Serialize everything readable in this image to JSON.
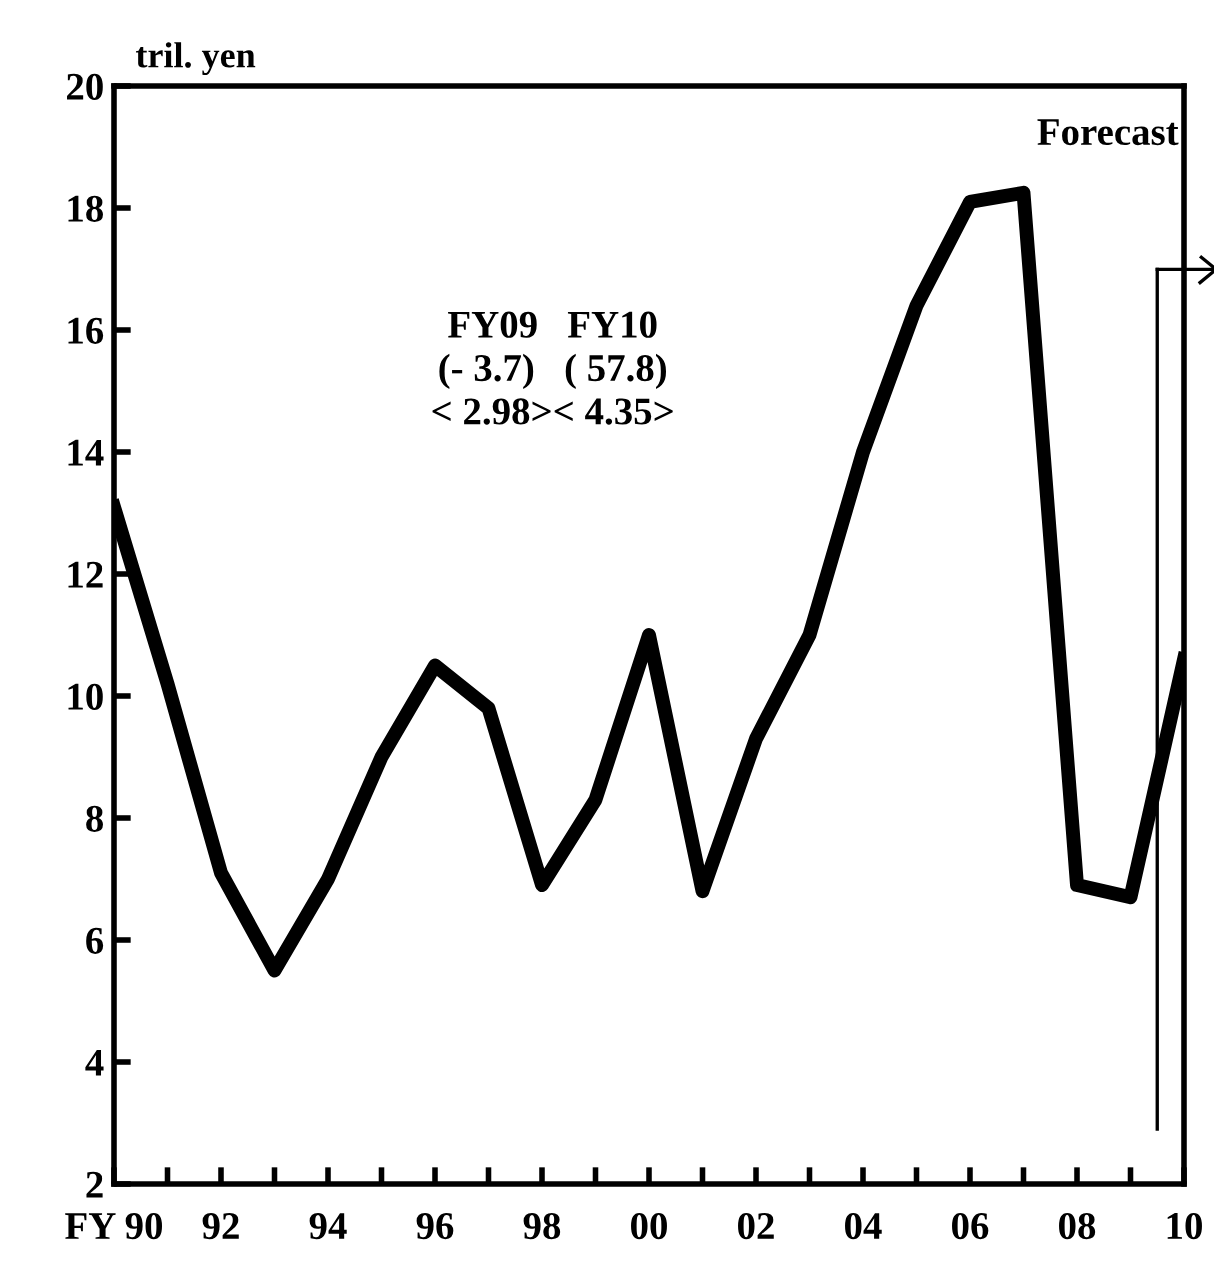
{
  "chart_data": {
    "type": "line",
    "ylabel": "tril. yen",
    "x": [
      1990,
      1991,
      1992,
      1993,
      1994,
      1995,
      1996,
      1997,
      1998,
      1999,
      2000,
      2001,
      2002,
      2003,
      2004,
      2005,
      2006,
      2007,
      2008,
      2009,
      2010
    ],
    "series": [
      {
        "color": "#000000",
        "values": [
          13.1,
          10.2,
          7.1,
          5.5,
          7.0,
          9.0,
          10.5,
          9.8,
          6.9,
          8.3,
          11.0,
          6.8,
          9.3,
          11.0,
          14.0,
          16.4,
          18.1,
          18.25,
          6.9,
          6.7,
          10.6
        ]
      }
    ],
    "xlim": [
      1990,
      2010
    ],
    "ylim": [
      2,
      20
    ],
    "xticks": [
      {
        "value": 1990,
        "label": "FY 90"
      },
      {
        "value": 1991,
        "label": null
      },
      {
        "value": 1992,
        "label": "92"
      },
      {
        "value": 1993,
        "label": null
      },
      {
        "value": 1994,
        "label": "94"
      },
      {
        "value": 1995,
        "label": null
      },
      {
        "value": 1996,
        "label": "96"
      },
      {
        "value": 1997,
        "label": null
      },
      {
        "value": 1998,
        "label": "98"
      },
      {
        "value": 1999,
        "label": null
      },
      {
        "value": 2000,
        "label": "00"
      },
      {
        "value": 2001,
        "label": null
      },
      {
        "value": 2002,
        "label": "02"
      },
      {
        "value": 2003,
        "label": null
      },
      {
        "value": 2004,
        "label": "04"
      },
      {
        "value": 2005,
        "label": null
      },
      {
        "value": 2006,
        "label": "06"
      },
      {
        "value": 2007,
        "label": null
      },
      {
        "value": 2008,
        "label": "08"
      },
      {
        "value": 2009,
        "label": null
      },
      {
        "value": 2010,
        "label": "10"
      }
    ],
    "yticks": [
      2,
      4,
      6,
      8,
      10,
      12,
      14,
      16,
      18,
      20
    ],
    "grid": false,
    "legend": false,
    "marker": "none",
    "line_style": "solid",
    "ref_lines": [
      {
        "axis": "x",
        "value": 2009.5,
        "label": "Forecast"
      }
    ],
    "annotations": [
      "FY09   FY10\n(- 3.7)   ( 57.8)\n< 2.98>< 4.35>"
    ]
  }
}
